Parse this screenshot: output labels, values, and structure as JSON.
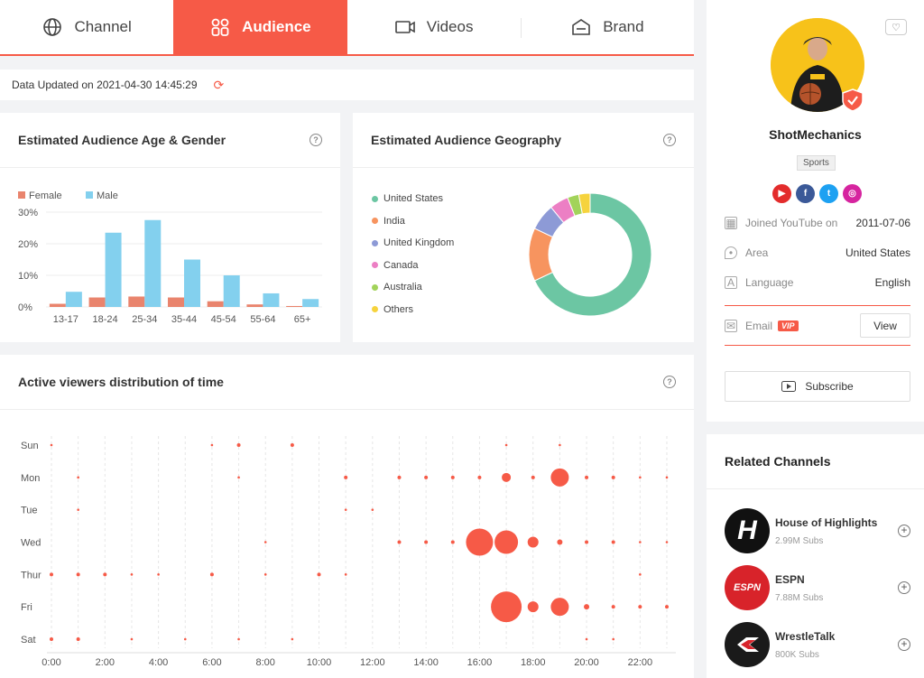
{
  "tabs": [
    {
      "label": "Channel",
      "icon": "globe-icon",
      "active": false
    },
    {
      "label": "Audience",
      "icon": "audience-icon",
      "active": true
    },
    {
      "label": "Videos",
      "icon": "video-icon",
      "active": false
    },
    {
      "label": "Brand",
      "icon": "brand-icon",
      "active": false
    }
  ],
  "update": {
    "text": "Data Updated on 2021-04-30 14:45:29"
  },
  "age_gender": {
    "title": "Estimated Audience Age & Gender",
    "help": "?"
  },
  "geo": {
    "title": "Estimated Audience Geography",
    "help": "?",
    "legend": [
      "United States",
      "India",
      "United Kingdom",
      "Canada",
      "Australia",
      "Others"
    ]
  },
  "time": {
    "title": "Active viewers distribution of time",
    "help": "?"
  },
  "colors": {
    "accent": "#f65a47",
    "female": "#e9846d",
    "male": "#83d0ee"
  },
  "chart_data": [
    {
      "type": "bar",
      "categories": [
        "13-17",
        "18-24",
        "25-34",
        "35-44",
        "45-54",
        "55-64",
        "65+"
      ],
      "series": [
        {
          "name": "Female",
          "values": [
            1,
            3,
            3.3,
            3,
            1.8,
            0.8,
            0.3
          ]
        },
        {
          "name": "Male",
          "values": [
            4.8,
            23.5,
            27.5,
            15,
            10,
            4.3,
            2.5
          ]
        }
      ],
      "yticks": [
        "0%",
        "10%",
        "20%",
        "30%"
      ],
      "ylim": [
        0,
        30
      ],
      "legend_position": "top-left"
    },
    {
      "type": "pie",
      "donut": true,
      "labels": [
        "United States",
        "India",
        "United Kingdom",
        "Canada",
        "Australia",
        "Others"
      ],
      "values": [
        68,
        14,
        7,
        5,
        3,
        3
      ],
      "colors": [
        "#6cc6a3",
        "#f7945f",
        "#8d9ad6",
        "#ec7fc4",
        "#a2d35a",
        "#f6d33d"
      ],
      "legend_position": "left"
    },
    {
      "type": "scatter",
      "subtype": "bubble",
      "days": [
        "Sun",
        "Mon",
        "Tue",
        "Wed",
        "Thur",
        "Fri",
        "Sat"
      ],
      "xticks": [
        "0:00",
        "2:00",
        "4:00",
        "6:00",
        "8:00",
        "10:00",
        "12:00",
        "14:00",
        "16:00",
        "18:00",
        "20:00",
        "22:00"
      ],
      "xlim": [
        0,
        23
      ],
      "points": [
        {
          "day": "Sun",
          "hour": 0,
          "size": 1
        },
        {
          "day": "Sun",
          "hour": 6,
          "size": 1
        },
        {
          "day": "Sun",
          "hour": 7,
          "size": 2
        },
        {
          "day": "Sun",
          "hour": 9,
          "size": 2
        },
        {
          "day": "Sun",
          "hour": 17,
          "size": 1
        },
        {
          "day": "Sun",
          "hour": 19,
          "size": 1
        },
        {
          "day": "Mon",
          "hour": 1,
          "size": 1
        },
        {
          "day": "Mon",
          "hour": 7,
          "size": 1
        },
        {
          "day": "Mon",
          "hour": 11,
          "size": 2
        },
        {
          "day": "Mon",
          "hour": 13,
          "size": 2
        },
        {
          "day": "Mon",
          "hour": 14,
          "size": 2
        },
        {
          "day": "Mon",
          "hour": 15,
          "size": 2
        },
        {
          "day": "Mon",
          "hour": 16,
          "size": 2
        },
        {
          "day": "Mon",
          "hour": 17,
          "size": 5
        },
        {
          "day": "Mon",
          "hour": 18,
          "size": 2
        },
        {
          "day": "Mon",
          "hour": 19,
          "size": 10
        },
        {
          "day": "Mon",
          "hour": 20,
          "size": 2
        },
        {
          "day": "Mon",
          "hour": 21,
          "size": 2
        },
        {
          "day": "Mon",
          "hour": 22,
          "size": 1
        },
        {
          "day": "Mon",
          "hour": 23,
          "size": 1
        },
        {
          "day": "Tue",
          "hour": 1,
          "size": 1
        },
        {
          "day": "Tue",
          "hour": 11,
          "size": 1
        },
        {
          "day": "Tue",
          "hour": 12,
          "size": 1
        },
        {
          "day": "Wed",
          "hour": 8,
          "size": 1
        },
        {
          "day": "Wed",
          "hour": 13,
          "size": 2
        },
        {
          "day": "Wed",
          "hour": 14,
          "size": 2
        },
        {
          "day": "Wed",
          "hour": 15,
          "size": 2
        },
        {
          "day": "Wed",
          "hour": 16,
          "size": 15
        },
        {
          "day": "Wed",
          "hour": 17,
          "size": 13
        },
        {
          "day": "Wed",
          "hour": 18,
          "size": 6
        },
        {
          "day": "Wed",
          "hour": 19,
          "size": 3
        },
        {
          "day": "Wed",
          "hour": 20,
          "size": 2
        },
        {
          "day": "Wed",
          "hour": 21,
          "size": 2
        },
        {
          "day": "Wed",
          "hour": 22,
          "size": 1
        },
        {
          "day": "Wed",
          "hour": 23,
          "size": 1
        },
        {
          "day": "Thur",
          "hour": 0,
          "size": 2
        },
        {
          "day": "Thur",
          "hour": 1,
          "size": 2
        },
        {
          "day": "Thur",
          "hour": 2,
          "size": 2
        },
        {
          "day": "Thur",
          "hour": 3,
          "size": 1
        },
        {
          "day": "Thur",
          "hour": 4,
          "size": 1
        },
        {
          "day": "Thur",
          "hour": 6,
          "size": 2
        },
        {
          "day": "Thur",
          "hour": 8,
          "size": 1
        },
        {
          "day": "Thur",
          "hour": 10,
          "size": 2
        },
        {
          "day": "Thur",
          "hour": 11,
          "size": 1
        },
        {
          "day": "Thur",
          "hour": 22,
          "size": 1
        },
        {
          "day": "Fri",
          "hour": 17,
          "size": 17
        },
        {
          "day": "Fri",
          "hour": 18,
          "size": 6
        },
        {
          "day": "Fri",
          "hour": 19,
          "size": 10
        },
        {
          "day": "Fri",
          "hour": 20,
          "size": 3
        },
        {
          "day": "Fri",
          "hour": 21,
          "size": 2
        },
        {
          "day": "Fri",
          "hour": 22,
          "size": 2
        },
        {
          "day": "Fri",
          "hour": 23,
          "size": 2
        },
        {
          "day": "Sat",
          "hour": 0,
          "size": 2
        },
        {
          "day": "Sat",
          "hour": 1,
          "size": 2
        },
        {
          "day": "Sat",
          "hour": 3,
          "size": 1
        },
        {
          "day": "Sat",
          "hour": 5,
          "size": 1
        },
        {
          "day": "Sat",
          "hour": 7,
          "size": 1
        },
        {
          "day": "Sat",
          "hour": 9,
          "size": 1
        },
        {
          "day": "Sat",
          "hour": 20,
          "size": 1
        },
        {
          "day": "Sat",
          "hour": 21,
          "size": 1
        }
      ]
    }
  ],
  "profile": {
    "name": "ShotMechanics",
    "category": "Sports",
    "joined_label": "Joined YouTube on",
    "joined_value": "2011-07-06",
    "area_label": "Area",
    "area_value": "United States",
    "language_label": "Language",
    "language_value": "English",
    "email_label": "Email",
    "vip_label": "VIP",
    "view_label": "View",
    "subscribe_label": "Subscribe"
  },
  "related": {
    "title": "Related Channels",
    "items": [
      {
        "name": "House of Highlights",
        "subs": "2.99M Subs",
        "avatar_color": "#111111",
        "avatar_text": "H"
      },
      {
        "name": "ESPN",
        "subs": "7.88M Subs",
        "avatar_color": "#d8232a",
        "avatar_text": "ESPN"
      },
      {
        "name": "WrestleTalk",
        "subs": "800K Subs",
        "avatar_color": "#1a1a1a",
        "avatar_text": "WT"
      }
    ]
  }
}
